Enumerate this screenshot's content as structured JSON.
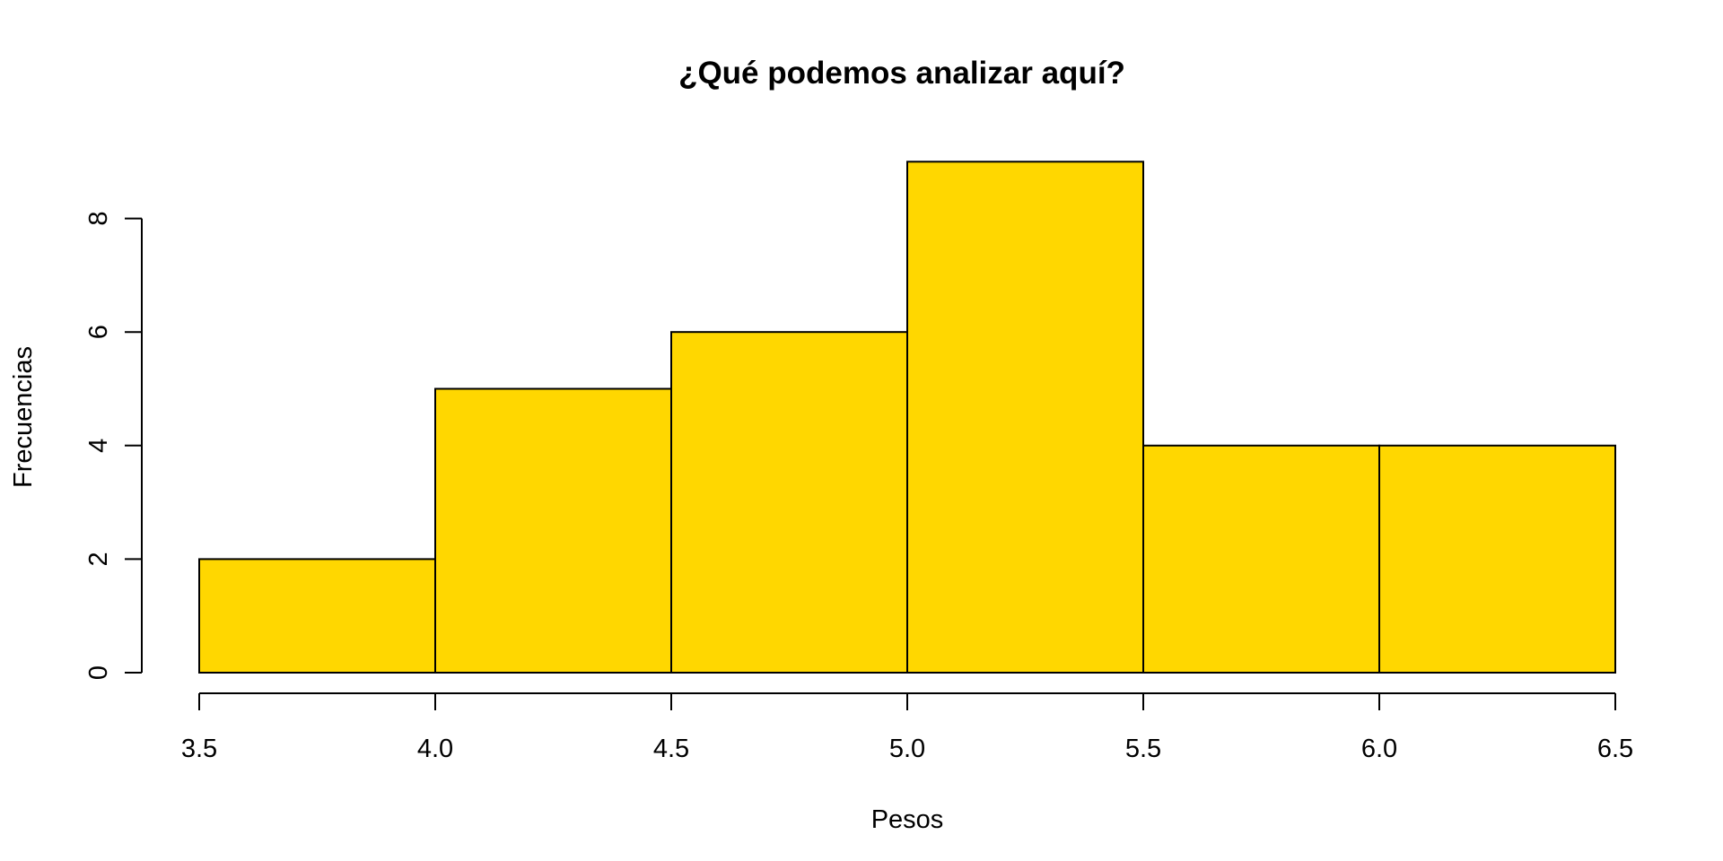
{
  "chart_data": {
    "type": "bar",
    "subtype": "histogram",
    "title": "¿Qué podemos analizar aquí?",
    "xlabel": "Pesos",
    "ylabel": "Frecuencias",
    "bin_edges": [
      3.5,
      4.0,
      4.5,
      5.0,
      5.5,
      6.0,
      6.5
    ],
    "values": [
      2,
      5,
      6,
      9,
      4,
      4
    ],
    "x_ticks": [
      3.5,
      4.0,
      4.5,
      5.0,
      5.5,
      6.0,
      6.5
    ],
    "x_tick_labels": [
      "3.5",
      "4.0",
      "4.5",
      "5.0",
      "5.5",
      "6.0",
      "6.5"
    ],
    "y_ticks": [
      0,
      2,
      4,
      6,
      8
    ],
    "y_tick_labels": [
      "0",
      "2",
      "4",
      "6",
      "8"
    ],
    "xlim": [
      3.5,
      6.5
    ],
    "ylim": [
      0,
      9
    ],
    "grid": false,
    "bar_color": "#FFD700",
    "edge_color": "#000000"
  }
}
